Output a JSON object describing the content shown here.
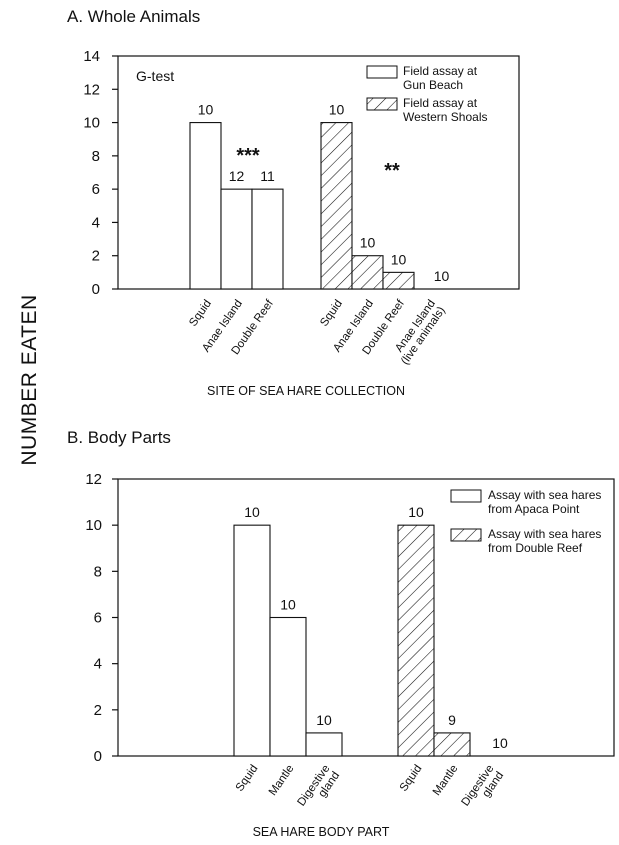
{
  "y_axis_label": "NUMBER EATEN",
  "chart_data": [
    {
      "type": "bar",
      "title": "A. Whole Animals",
      "xlabel": "SITE OF SEA HARE COLLECTION",
      "annotation": "G-test",
      "ylim": [
        0,
        14
      ],
      "yticks": [
        0,
        2,
        4,
        6,
        8,
        10,
        12,
        14
      ],
      "series": [
        {
          "name": "Field assay at Gun Beach",
          "pattern": "open",
          "categories": [
            "Squid",
            "Anae Island",
            "Double Reef"
          ],
          "values": [
            10,
            6,
            6
          ],
          "data_labels": [
            "10",
            "12",
            "11"
          ],
          "significance": "***"
        },
        {
          "name": "Field assay at Western Shoals",
          "pattern": "hatched",
          "categories": [
            "Squid",
            "Anae Island",
            "Double Reef",
            "Anae Island (live animals)"
          ],
          "category_lines": [
            [
              "Squid"
            ],
            [
              "Anae Island"
            ],
            [
              "Double Reef"
            ],
            [
              "Anae Island",
              "(live animals)"
            ]
          ],
          "values": [
            10,
            2,
            1,
            0
          ],
          "data_labels": [
            "10",
            "10",
            "10",
            "10"
          ],
          "significance": "**"
        }
      ],
      "legend_position": "top-right",
      "legend_entries": [
        {
          "lines": [
            "Field assay at",
            "Gun Beach"
          ],
          "pattern": "open"
        },
        {
          "lines": [
            "Field assay at",
            "Western Shoals"
          ],
          "pattern": "hatched"
        }
      ]
    },
    {
      "type": "bar",
      "title": "B. Body Parts",
      "xlabel": "SEA HARE BODY PART",
      "ylim": [
        0,
        12
      ],
      "yticks": [
        0,
        2,
        4,
        6,
        8,
        10,
        12
      ],
      "series": [
        {
          "name": "Assay with sea hares from Apaca Point",
          "pattern": "open",
          "categories": [
            "Squid",
            "Mantle",
            "Digestive gland"
          ],
          "category_lines": [
            [
              "Squid"
            ],
            [
              "Mantle"
            ],
            [
              "Digestive",
              "gland"
            ]
          ],
          "values": [
            10,
            6,
            1
          ],
          "data_labels": [
            "10",
            "10",
            "10"
          ]
        },
        {
          "name": "Assay with sea hares from Double Reef",
          "pattern": "hatched",
          "categories": [
            "Squid",
            "Mantle",
            "Digestive gland"
          ],
          "category_lines": [
            [
              "Squid"
            ],
            [
              "Mantle"
            ],
            [
              "Digestive",
              "gland"
            ]
          ],
          "values": [
            10,
            1,
            0
          ],
          "data_labels": [
            "10",
            "9",
            "10"
          ]
        }
      ],
      "legend_position": "top-right",
      "legend_entries": [
        {
          "lines": [
            "Assay with sea hares",
            "from Apaca Point"
          ],
          "pattern": "open"
        },
        {
          "lines": [
            "Assay with sea hares",
            "from Double Reef"
          ],
          "pattern": "hatched"
        }
      ]
    }
  ]
}
